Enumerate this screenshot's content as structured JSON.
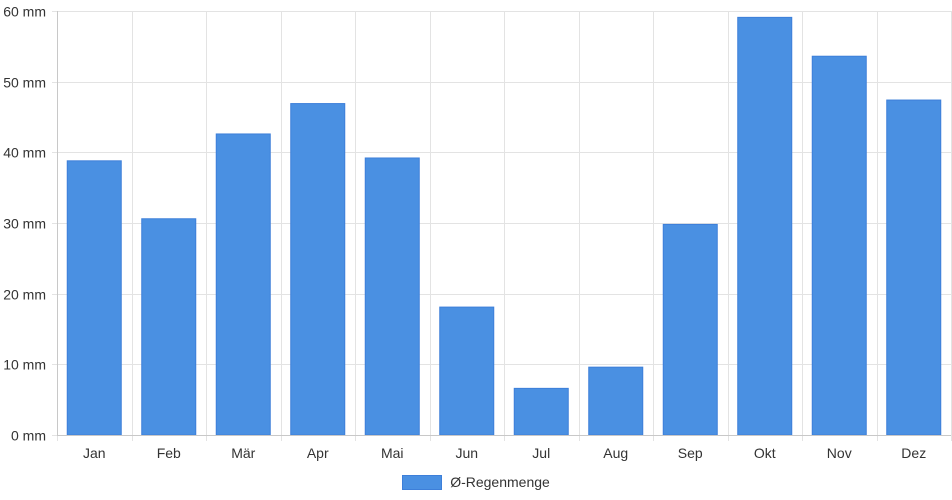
{
  "chart_data": {
    "type": "bar",
    "categories": [
      "Jan",
      "Feb",
      "Mär",
      "Apr",
      "Mai",
      "Jun",
      "Jul",
      "Aug",
      "Sep",
      "Okt",
      "Nov",
      "Dez"
    ],
    "series": [
      {
        "name": "Ø-Regenmenge",
        "values": [
          38.8,
          30.6,
          42.6,
          46.9,
          39.2,
          18.1,
          6.6,
          9.6,
          29.8,
          59.1,
          53.6,
          47.4
        ],
        "color": "#4a90e2"
      }
    ],
    "y_ticks": [
      "0 mm",
      "10 mm",
      "20 mm",
      "30 mm",
      "40 mm",
      "50 mm",
      "60 mm"
    ],
    "ylim": [
      0,
      60
    ],
    "grid": true,
    "legend_position": "bottom"
  }
}
